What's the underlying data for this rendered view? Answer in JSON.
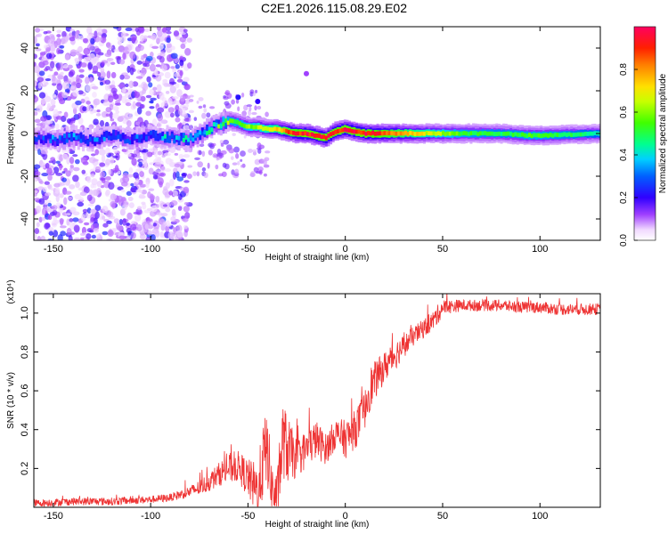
{
  "figure": {
    "title": "C2E1.2026.115.08.29.E02"
  },
  "chart_data": [
    {
      "type": "heatmap",
      "title": "C2E1.2026.115.08.29.E02",
      "xlabel": "Height of straight line (km)",
      "ylabel": "Frequency (Hz)",
      "xlim": [
        -160,
        131
      ],
      "ylim": [
        -50,
        50
      ],
      "x_ticks": [
        -150,
        -100,
        -50,
        0,
        50,
        100
      ],
      "y_ticks": [
        -40,
        -20,
        0,
        20,
        40
      ],
      "colorbar": {
        "label": "Normalized spectral amplitude",
        "range": [
          0,
          1
        ],
        "ticks": [
          0.0,
          0.2,
          0.4,
          0.6,
          0.8
        ],
        "tick_labels": [
          "0.0",
          "0.2",
          "0.4",
          "0.6",
          "0.8"
        ]
      },
      "ridge": {
        "description_points_x": [
          -160,
          -150,
          -140,
          -130,
          -120,
          -110,
          -100,
          -90,
          -80,
          -75,
          -70,
          -65,
          -60,
          -55,
          -50,
          -45,
          -40,
          -35,
          -30,
          -25,
          -20,
          -15,
          -10,
          -5,
          0,
          5,
          10,
          20,
          40,
          60,
          80,
          95,
          100,
          131
        ],
        "frequency_hz": [
          -2,
          -3,
          -2,
          -3,
          -1,
          -3,
          -1,
          -2,
          -3,
          -1,
          2,
          4,
          6,
          5,
          3,
          3,
          2,
          2,
          1,
          0,
          0,
          -1,
          -2,
          1,
          2,
          1,
          0,
          0,
          0,
          0,
          0,
          -1,
          -1,
          0
        ],
        "amplitude": [
          0.25,
          0.28,
          0.3,
          0.3,
          0.3,
          0.28,
          0.3,
          0.35,
          0.38,
          0.4,
          0.45,
          0.5,
          0.55,
          0.55,
          0.6,
          0.65,
          0.7,
          0.75,
          0.85,
          0.92,
          0.95,
          0.95,
          0.95,
          0.95,
          0.95,
          0.95,
          0.95,
          0.9,
          0.7,
          0.55,
          0.5,
          0.55,
          0.55,
          0.45
        ]
      }
    },
    {
      "type": "line",
      "xlabel": "Height of straight line (km)",
      "ylabel": "SNR (10 * v/v)",
      "y_multiplier": "(x10⁴)",
      "xlim": [
        -160,
        131
      ],
      "ylim": [
        0,
        1.1
      ],
      "x_ticks": [
        -150,
        -100,
        -50,
        0,
        50,
        100
      ],
      "y_ticks": [
        0.2,
        0.4,
        0.6,
        0.8,
        1.0
      ],
      "y_tick_labels": [
        "0.2",
        "0.4",
        "0.6",
        "0.8",
        "1.0"
      ],
      "series": [
        {
          "color": "#ee3333",
          "x": [
            -160,
            -140,
            -120,
            -100,
            -90,
            -80,
            -75,
            -70,
            -65,
            -60,
            -55,
            -50,
            -45,
            -42,
            -40,
            -38,
            -35,
            -32,
            -30,
            -25,
            -20,
            -15,
            -10,
            -5,
            0,
            5,
            10,
            12,
            15,
            20,
            25,
            30,
            35,
            40,
            45,
            48,
            50,
            60,
            70,
            80,
            90,
            100,
            110,
            120,
            131
          ],
          "y": [
            0.02,
            0.03,
            0.03,
            0.04,
            0.05,
            0.08,
            0.1,
            0.13,
            0.17,
            0.2,
            0.21,
            0.15,
            0.08,
            0.25,
            0.3,
            0.1,
            0.05,
            0.35,
            0.3,
            0.25,
            0.3,
            0.35,
            0.3,
            0.38,
            0.35,
            0.4,
            0.5,
            0.6,
            0.65,
            0.72,
            0.78,
            0.83,
            0.88,
            0.92,
            0.96,
            1.0,
            1.03,
            1.04,
            1.04,
            1.04,
            1.03,
            1.03,
            1.02,
            1.02,
            1.02
          ],
          "noise_amplitude": [
            0.02,
            0.02,
            0.02,
            0.02,
            0.02,
            0.03,
            0.04,
            0.05,
            0.06,
            0.08,
            0.08,
            0.1,
            0.15,
            0.2,
            0.2,
            0.15,
            0.12,
            0.2,
            0.18,
            0.1,
            0.1,
            0.1,
            0.08,
            0.08,
            0.1,
            0.1,
            0.1,
            0.12,
            0.1,
            0.08,
            0.08,
            0.06,
            0.05,
            0.05,
            0.05,
            0.05,
            0.04,
            0.03,
            0.03,
            0.03,
            0.03,
            0.03,
            0.03,
            0.03,
            0.03
          ]
        }
      ]
    }
  ]
}
